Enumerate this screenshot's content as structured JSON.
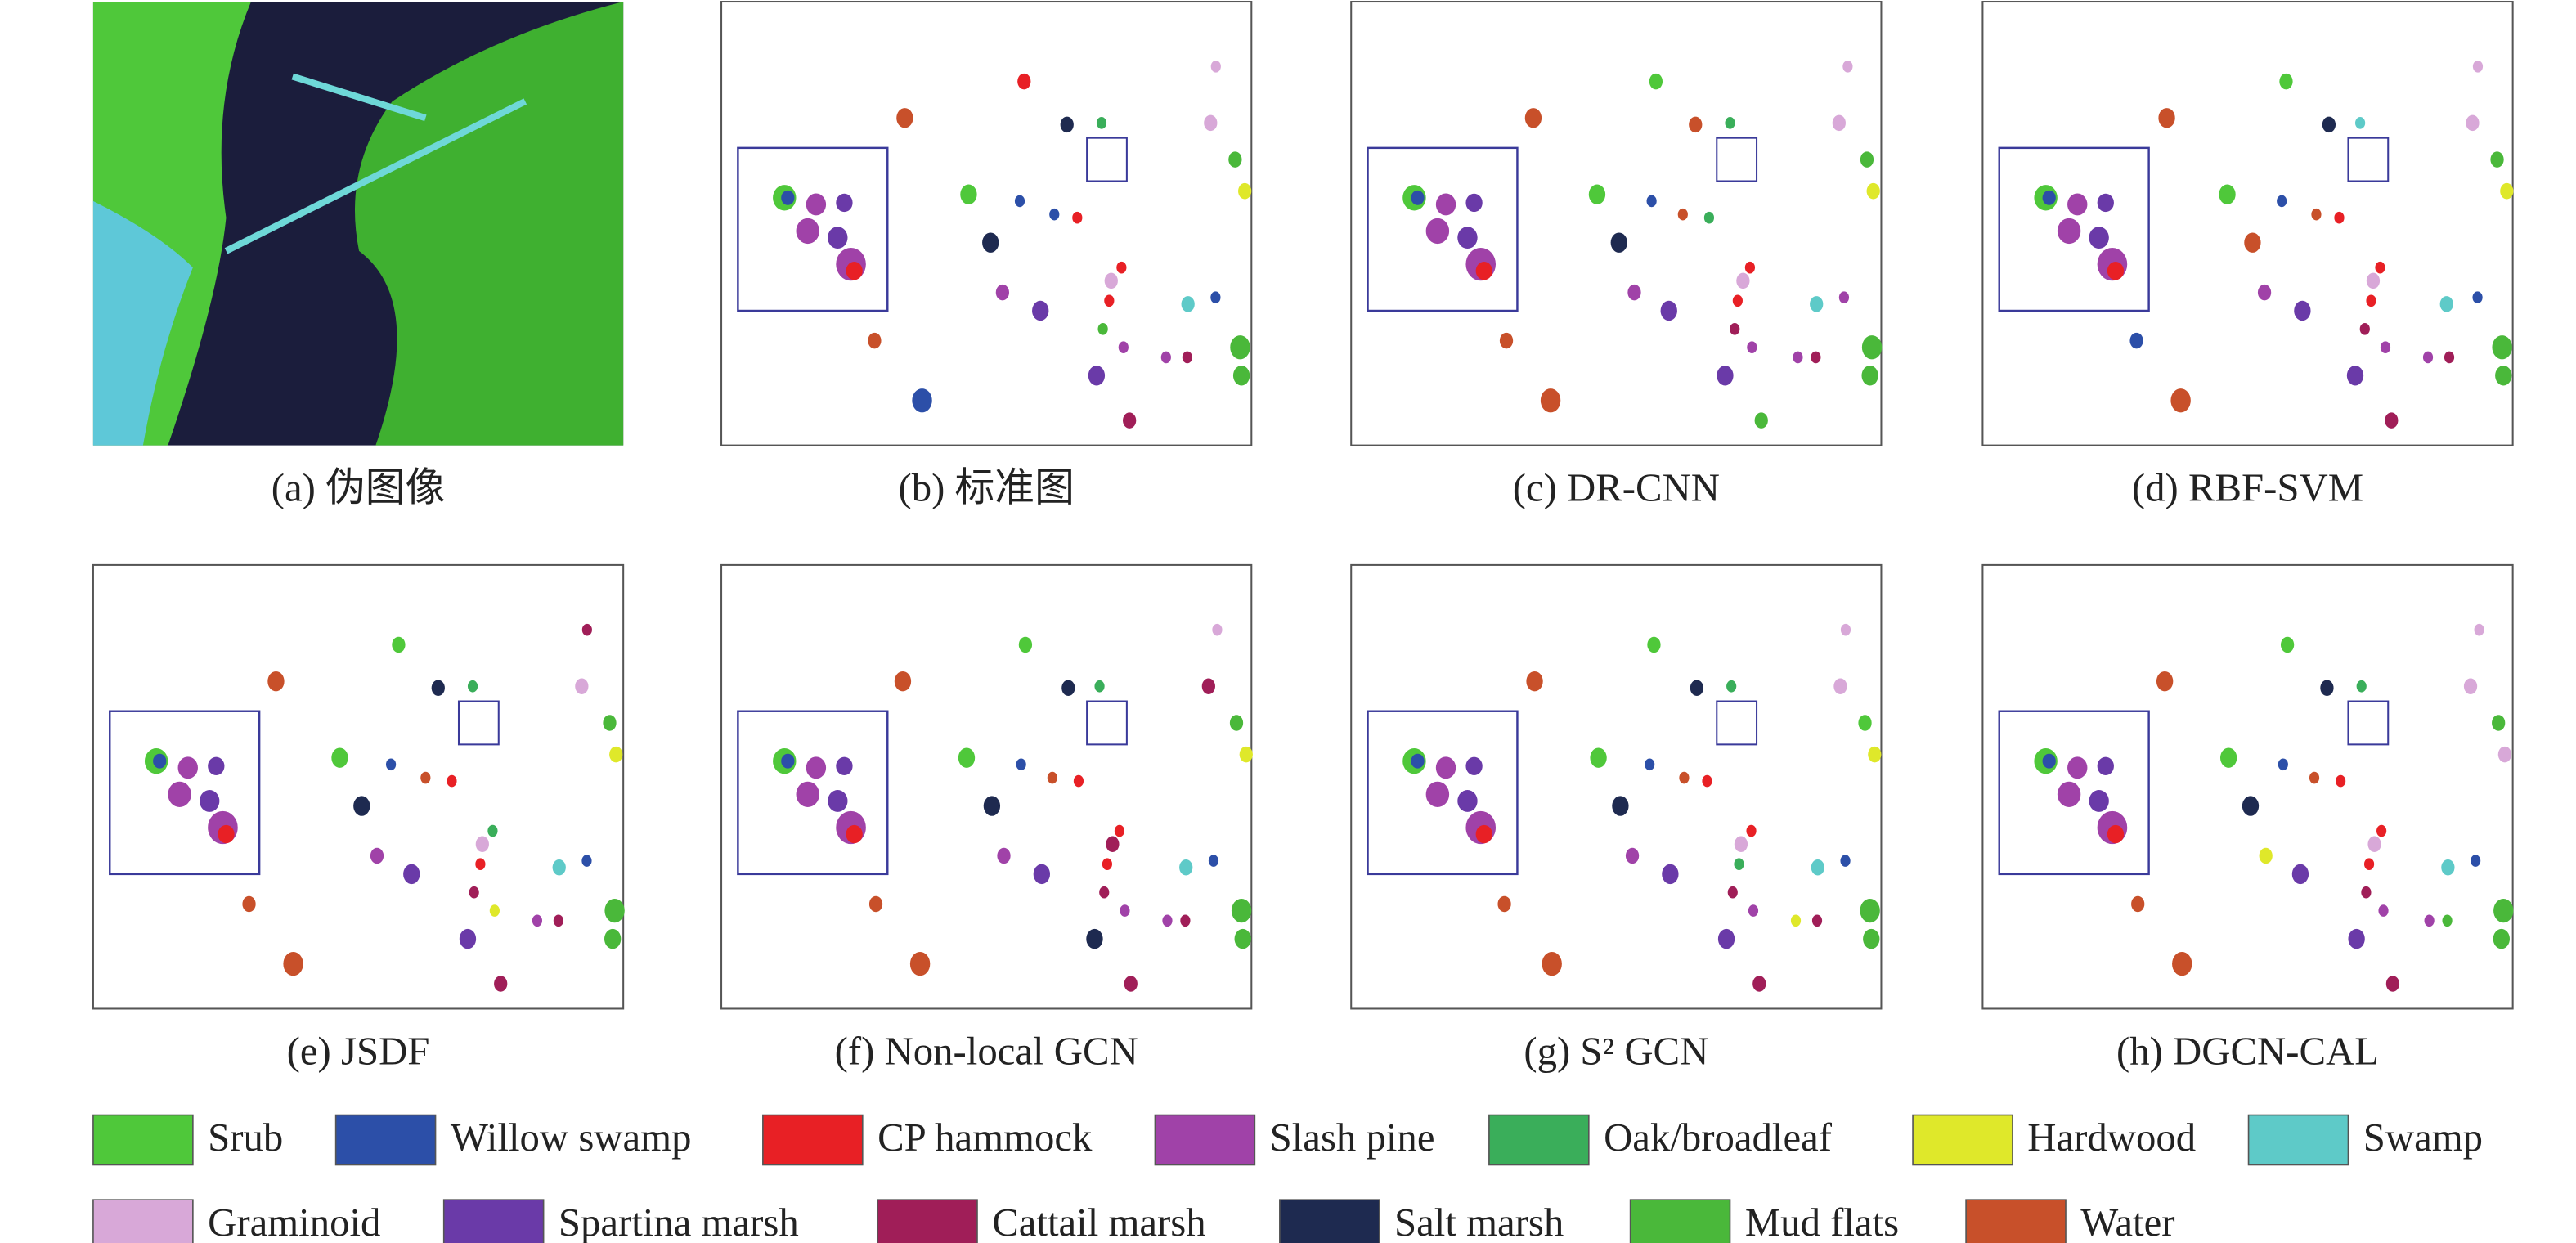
{
  "panels": [
    "(a) 伪图像",
    "(b) 标准图",
    "(c) DR-CNN",
    "(d) RBF-SVM",
    "(e) JSDF",
    "(f) Non-local GCN",
    "(g) S² GCN",
    "(h) DGCN-CAL"
  ],
  "legend": [
    {
      "label": "Srub",
      "color": "#4fc83a"
    },
    {
      "label": "Willow swamp",
      "color": "#2c4fa8"
    },
    {
      "label": "CP hammock",
      "color": "#e82025"
    },
    {
      "label": "Slash pine",
      "color": "#a042a8"
    },
    {
      "label": "Oak/broadleaf",
      "color": "#3aae5a"
    },
    {
      "label": "Hardwood",
      "color": "#dfe82a"
    },
    {
      "label": "Swamp",
      "color": "#5ecac8"
    },
    {
      "label": "Graminoid",
      "color": "#d8a8d8"
    },
    {
      "label": "Spartina marsh",
      "color": "#6a3aa8"
    },
    {
      "label": "Cattail marsh",
      "color": "#a01e58"
    },
    {
      "label": "Salt marsh",
      "color": "#1e2a50"
    },
    {
      "label": "Mud flats",
      "color": "#4ab83a"
    },
    {
      "label": "Water",
      "color": "#c8502a"
    }
  ]
}
